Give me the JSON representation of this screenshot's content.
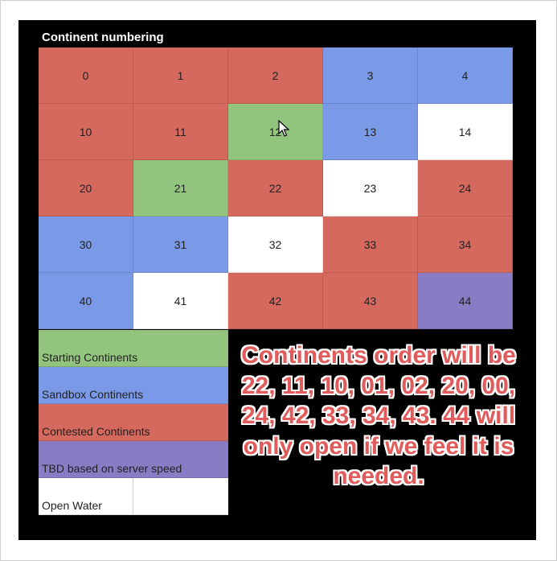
{
  "title": "Continent numbering",
  "colors": {
    "starting": "#93c47d",
    "sandbox": "#7a99e6",
    "contested": "#d5695e",
    "tbd": "#8a7cc4",
    "open_water": "#ffffff"
  },
  "grid": [
    [
      {
        "label": "0",
        "type": "contested"
      },
      {
        "label": "1",
        "type": "contested"
      },
      {
        "label": "2",
        "type": "contested"
      },
      {
        "label": "3",
        "type": "sandbox"
      },
      {
        "label": "4",
        "type": "sandbox"
      }
    ],
    [
      {
        "label": "10",
        "type": "contested"
      },
      {
        "label": "11",
        "type": "contested"
      },
      {
        "label": "12",
        "type": "starting"
      },
      {
        "label": "13",
        "type": "sandbox"
      },
      {
        "label": "14",
        "type": "open_water"
      }
    ],
    [
      {
        "label": "20",
        "type": "contested"
      },
      {
        "label": "21",
        "type": "starting"
      },
      {
        "label": "22",
        "type": "contested"
      },
      {
        "label": "23",
        "type": "open_water"
      },
      {
        "label": "24",
        "type": "contested"
      }
    ],
    [
      {
        "label": "30",
        "type": "sandbox"
      },
      {
        "label": "31",
        "type": "sandbox"
      },
      {
        "label": "32",
        "type": "open_water"
      },
      {
        "label": "33",
        "type": "contested"
      },
      {
        "label": "34",
        "type": "contested"
      }
    ],
    [
      {
        "label": "40",
        "type": "sandbox"
      },
      {
        "label": "41",
        "type": "open_water"
      },
      {
        "label": "42",
        "type": "contested"
      },
      {
        "label": "43",
        "type": "contested"
      },
      {
        "label": "44",
        "type": "tbd"
      }
    ]
  ],
  "legend": [
    {
      "type": "starting",
      "label": "Starting Continents"
    },
    {
      "type": "sandbox",
      "label": "Sandbox Continents"
    },
    {
      "type": "contested",
      "label": "Contested Continents"
    },
    {
      "type": "tbd",
      "label": "TBD based on server speed"
    },
    {
      "type": "open_water",
      "label": "Open Water"
    }
  ],
  "note": "Continents order will be 22, 11, 10, 01, 02, 20, 00, 24, 42, 33, 34, 43.  44 will only open if we feel it is needed."
}
